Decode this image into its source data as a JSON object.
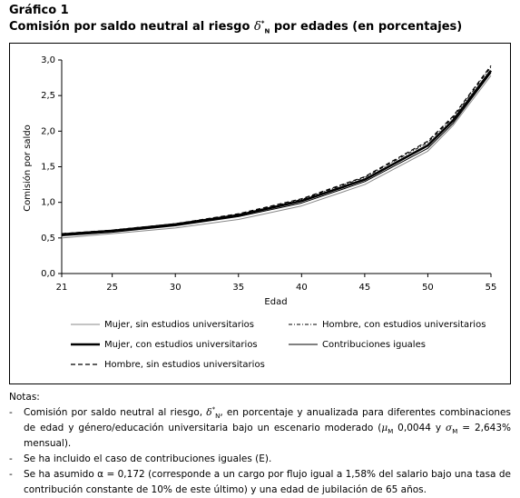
{
  "chart_data": {
    "type": "line",
    "title": "Gráfico 1",
    "subtitle_parts": [
      "Comisión por saldo neutral al riesgo",
      "δ",
      "*",
      "N",
      "por edades (en porcentajes)"
    ],
    "x_label": "Edad",
    "y_label": "Comisión por saldo",
    "x": [
      21,
      25,
      30,
      35,
      40,
      45,
      50,
      52,
      55
    ],
    "xlim": [
      21,
      55
    ],
    "xticks": [
      21,
      25,
      30,
      35,
      40,
      45,
      50,
      55
    ],
    "ylim": [
      0,
      3
    ],
    "yticks": [
      {
        "value": 0,
        "label": "0,0"
      },
      {
        "value": 0.5,
        "label": "0,5"
      },
      {
        "value": 1,
        "label": "1,0"
      },
      {
        "value": 1.5,
        "label": "1,5"
      },
      {
        "value": 2,
        "label": "2,0"
      },
      {
        "value": 2.5,
        "label": "2,5"
      },
      {
        "value": 3,
        "label": "3,0"
      }
    ],
    "series": [
      {
        "name": "Mujer, sin estudios universitarios",
        "color": "#888888",
        "style": "thin",
        "values": [
          0.5,
          0.56,
          0.64,
          0.76,
          0.95,
          1.25,
          1.72,
          2.08,
          2.78
        ]
      },
      {
        "name": "Mujer, con estudios universitarios",
        "color": "#000000",
        "style": "thick",
        "values": [
          0.55,
          0.6,
          0.69,
          0.82,
          1.02,
          1.32,
          1.8,
          2.15,
          2.85
        ]
      },
      {
        "name": "Hombre, sin estudios universitarios",
        "color": "#000000",
        "style": "dashed",
        "values": [
          0.56,
          0.61,
          0.7,
          0.84,
          1.05,
          1.36,
          1.86,
          2.21,
          2.92
        ]
      },
      {
        "name": "Hombre, con estudios universitarios",
        "color": "#000000",
        "style": "dash-dot",
        "values": [
          0.55,
          0.61,
          0.7,
          0.83,
          1.04,
          1.35,
          1.84,
          2.19,
          2.9
        ]
      },
      {
        "name": "Contribuciones iguales",
        "color": "#000000",
        "style": "thin",
        "values": [
          0.53,
          0.58,
          0.67,
          0.8,
          0.99,
          1.29,
          1.76,
          2.11,
          2.82
        ]
      }
    ]
  },
  "notes": {
    "heading": "Notas:",
    "items": [
      [
        "Comisión por saldo neutral al riesgo, ",
        "δ",
        "*",
        "N",
        ", en porcentaje y anualizada para diferentes combinaciones de edad y género/educación universitaria bajo un escenario moderado (",
        "μ",
        "M",
        " 0,0044 y ",
        "σ",
        "M",
        " = 2,643% mensual)."
      ],
      [
        "Se ha incluido el caso de contribuciones iguales (E)."
      ],
      [
        "Se ha asumido α = 0,172 (corresponde a un cargo por flujo igual a 1,58% del salario bajo una tasa de contribución constante de 10% de este último) y una edad de jubilación de 65 años."
      ]
    ]
  }
}
